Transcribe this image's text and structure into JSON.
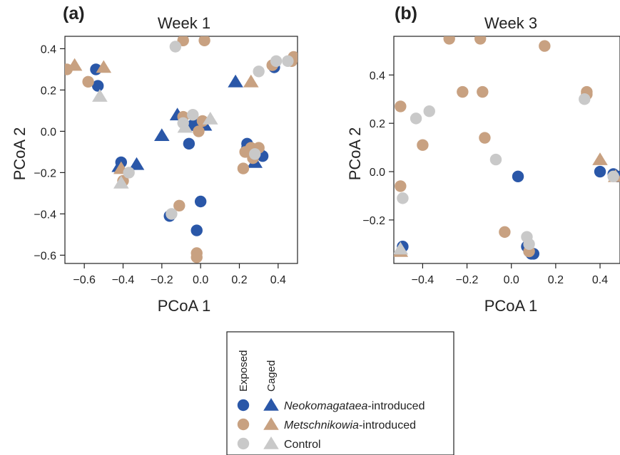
{
  "colors": {
    "neokomagataea": "#2a57a8",
    "metschnikowia": "#c8a181",
    "control": "#c9c9c9"
  },
  "legend": {
    "col_exposed": "Exposed",
    "col_caged": "Caged",
    "entries": [
      {
        "key": "neokomagataea",
        "name_italic": "Neokomagataea",
        "name_rest": "-introduced"
      },
      {
        "key": "metschnikowia",
        "name_italic": "Metschnikowia",
        "name_rest": "-introduced"
      },
      {
        "key": "control",
        "name_italic": "",
        "name_rest": "Control"
      }
    ]
  },
  "chart_data": [
    {
      "type": "scatter",
      "panel_letter": "(a)",
      "title": "Week 1",
      "xlabel": "PCoA 1",
      "ylabel": "PCoA 2",
      "xlim": [
        -0.7,
        0.5
      ],
      "ylim": [
        -0.64,
        0.46
      ],
      "xticks": [
        -0.6,
        -0.4,
        -0.2,
        0.0,
        0.2,
        0.4
      ],
      "xtick_labels": [
        "−0.6",
        "−0.4",
        "−0.2",
        "0.0",
        "0.2",
        "0.4"
      ],
      "yticks": [
        -0.6,
        -0.4,
        -0.2,
        0.0,
        0.2,
        0.4
      ],
      "ytick_labels": [
        "−0.6",
        "−0.4",
        "−0.2",
        "0.0",
        "0.2",
        "0.4"
      ],
      "series": [
        {
          "group": "neokomagataea",
          "treatment": "exposed",
          "points": [
            [
              -0.54,
              0.3
            ],
            [
              -0.53,
              0.22
            ],
            [
              -0.41,
              -0.15
            ],
            [
              -0.06,
              -0.06
            ],
            [
              -0.04,
              0.03
            ],
            [
              -0.01,
              0.04
            ],
            [
              0.0,
              -0.34
            ],
            [
              -0.02,
              -0.48
            ],
            [
              -0.16,
              -0.41
            ],
            [
              0.24,
              -0.06
            ],
            [
              0.24,
              -0.08
            ],
            [
              0.32,
              -0.12
            ],
            [
              0.3,
              -0.1
            ],
            [
              0.38,
              0.31
            ]
          ]
        },
        {
          "group": "neokomagataea",
          "treatment": "caged",
          "points": [
            [
              -0.42,
              -0.17
            ],
            [
              -0.33,
              -0.16
            ],
            [
              -0.2,
              -0.02
            ],
            [
              -0.12,
              0.08
            ],
            [
              0.02,
              0.03
            ],
            [
              0.18,
              0.24
            ],
            [
              0.28,
              -0.15
            ]
          ]
        },
        {
          "group": "metschnikowia",
          "treatment": "exposed",
          "points": [
            [
              -0.69,
              0.3
            ],
            [
              -0.58,
              0.24
            ],
            [
              -0.4,
              -0.24
            ],
            [
              -0.11,
              -0.36
            ],
            [
              -0.09,
              0.44
            ],
            [
              -0.09,
              0.07
            ],
            [
              0.02,
              0.44
            ],
            [
              -0.01,
              0.0
            ],
            [
              0.01,
              0.05
            ],
            [
              -0.02,
              -0.59
            ],
            [
              -0.02,
              -0.61
            ],
            [
              0.22,
              -0.18
            ],
            [
              0.26,
              -0.08
            ],
            [
              0.27,
              -0.13
            ],
            [
              0.3,
              -0.08
            ],
            [
              0.23,
              -0.1
            ],
            [
              0.37,
              0.32
            ],
            [
              0.47,
              0.34
            ],
            [
              0.48,
              0.36
            ]
          ]
        },
        {
          "group": "metschnikowia",
          "treatment": "caged",
          "points": [
            [
              -0.65,
              0.32
            ],
            [
              -0.5,
              0.31
            ],
            [
              0.26,
              0.24
            ],
            [
              -0.41,
              -0.18
            ]
          ]
        },
        {
          "group": "control",
          "treatment": "exposed",
          "points": [
            [
              -0.13,
              0.41
            ],
            [
              -0.37,
              -0.2
            ],
            [
              -0.15,
              -0.4
            ],
            [
              -0.09,
              0.04
            ],
            [
              -0.04,
              0.08
            ],
            [
              0.3,
              0.29
            ],
            [
              0.39,
              0.34
            ],
            [
              0.45,
              0.34
            ],
            [
              0.28,
              -0.11
            ]
          ]
        },
        {
          "group": "control",
          "treatment": "caged",
          "points": [
            [
              -0.52,
              0.17
            ],
            [
              -0.41,
              -0.25
            ],
            [
              -0.08,
              0.02
            ],
            [
              0.05,
              0.06
            ]
          ]
        }
      ]
    },
    {
      "type": "scatter",
      "panel_letter": "(b)",
      "title": "Week 3",
      "xlabel": "PCoA 1",
      "ylabel": "PCoA 2",
      "xlim": [
        -0.53,
        0.49
      ],
      "ylim": [
        -0.38,
        0.56
      ],
      "xticks": [
        -0.4,
        -0.2,
        0.0,
        0.2,
        0.4
      ],
      "xtick_labels": [
        "−0.4",
        "−0.2",
        "0.0",
        "0.2",
        "0.4"
      ],
      "yticks": [
        -0.2,
        0.0,
        0.2,
        0.4
      ],
      "ytick_labels": [
        "−0.2",
        "0.0",
        "0.2",
        "0.4"
      ],
      "series": [
        {
          "group": "neokomagataea",
          "treatment": "exposed",
          "points": [
            [
              -0.49,
              -0.31
            ],
            [
              0.03,
              -0.02
            ],
            [
              0.07,
              -0.31
            ],
            [
              0.08,
              -0.33
            ],
            [
              0.09,
              -0.34
            ],
            [
              0.1,
              -0.34
            ],
            [
              0.4,
              0.0
            ],
            [
              0.46,
              -0.01
            ],
            [
              0.48,
              -0.02
            ]
          ]
        },
        {
          "group": "neokomagataea",
          "treatment": "caged",
          "points": []
        },
        {
          "group": "metschnikowia",
          "treatment": "exposed",
          "points": [
            [
              -0.5,
              0.27
            ],
            [
              -0.5,
              -0.06
            ],
            [
              -0.4,
              0.11
            ],
            [
              -0.28,
              0.55
            ],
            [
              -0.22,
              0.33
            ],
            [
              -0.14,
              0.55
            ],
            [
              -0.13,
              0.33
            ],
            [
              -0.12,
              0.14
            ],
            [
              -0.03,
              -0.25
            ],
            [
              0.08,
              -0.33
            ],
            [
              0.15,
              0.52
            ],
            [
              0.34,
              0.33
            ],
            [
              0.34,
              0.32
            ]
          ]
        },
        {
          "group": "metschnikowia",
          "treatment": "caged",
          "points": [
            [
              -0.5,
              -0.33
            ],
            [
              0.4,
              0.05
            ],
            [
              0.47,
              -0.02
            ]
          ]
        },
        {
          "group": "control",
          "treatment": "exposed",
          "points": [
            [
              -0.49,
              -0.11
            ],
            [
              -0.43,
              0.22
            ],
            [
              -0.37,
              0.25
            ],
            [
              -0.07,
              0.05
            ],
            [
              0.07,
              -0.27
            ],
            [
              0.08,
              -0.3
            ],
            [
              0.33,
              0.3
            ],
            [
              0.46,
              -0.02
            ]
          ]
        },
        {
          "group": "control",
          "treatment": "caged",
          "points": [
            [
              -0.5,
              -0.32
            ]
          ]
        }
      ]
    }
  ]
}
